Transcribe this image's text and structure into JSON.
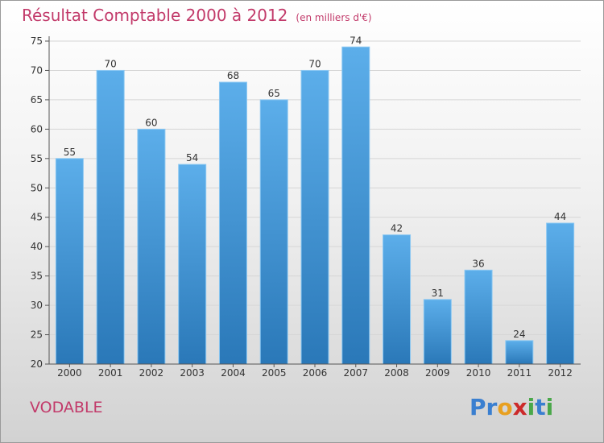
{
  "header": {
    "title": "Résultat Comptable 2000 à 2012",
    "unit": "(en milliers d'€)"
  },
  "commune": "VODABLE",
  "logo": {
    "text": "Proxiti",
    "letters": [
      {
        "ch": "P",
        "color": "#3a7fd0"
      },
      {
        "ch": "r",
        "color": "#3a7fd0"
      },
      {
        "ch": "o",
        "color": "#e8a020"
      },
      {
        "ch": "x",
        "color": "#cc2a2a"
      },
      {
        "ch": "i",
        "color": "#4aa84a"
      },
      {
        "ch": "t",
        "color": "#3a7fd0"
      },
      {
        "ch": "i",
        "color": "#4aa84a"
      }
    ]
  },
  "colors": {
    "title": "#c23a6a",
    "bar_top": "#5caeea",
    "bar_bottom": "#2a78b8",
    "grid": "#d6d6d6",
    "axis": "#555555"
  },
  "chart_data": {
    "type": "bar",
    "title": "Résultat Comptable 2000 à 2012",
    "categories": [
      "2000",
      "2001",
      "2002",
      "2003",
      "2004",
      "2005",
      "2006",
      "2007",
      "2008",
      "2009",
      "2010",
      "2011",
      "2012"
    ],
    "values": [
      55,
      70,
      60,
      54,
      68,
      65,
      70,
      74,
      42,
      31,
      36,
      24,
      44
    ],
    "xlabel": "",
    "ylabel": "",
    "ylim": [
      20,
      75
    ],
    "yticks": [
      20,
      25,
      30,
      35,
      40,
      45,
      50,
      55,
      60,
      65,
      70,
      75
    ],
    "grid": true
  }
}
